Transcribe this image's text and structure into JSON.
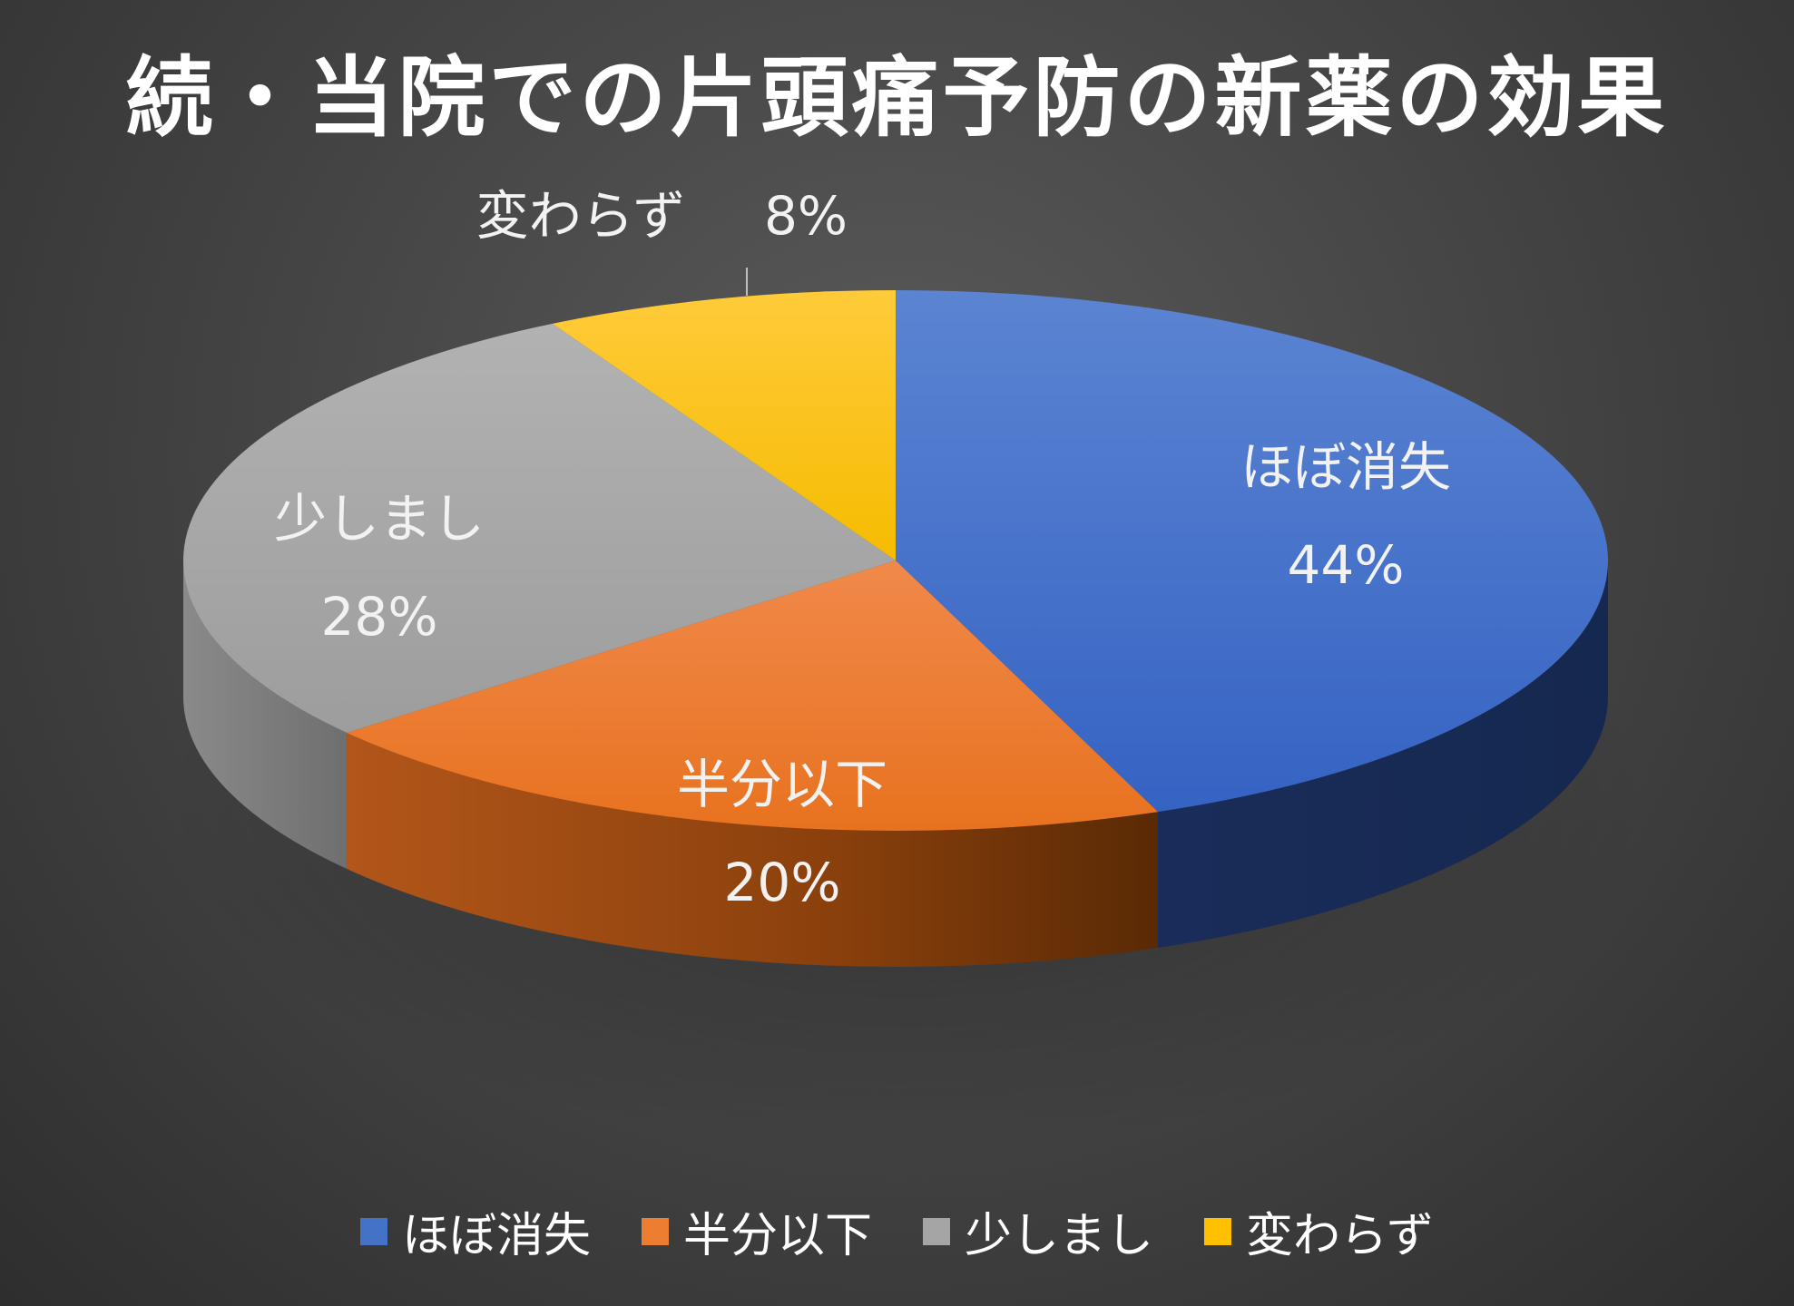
{
  "chart_data": {
    "type": "pie",
    "title": "続・当院での片頭痛予防の新薬の効果",
    "categories": [
      "ほぼ消失",
      "半分以下",
      "少しまし",
      "変わらず"
    ],
    "values": [
      44,
      20,
      28,
      8
    ],
    "data_labels": [
      {
        "name": "ほぼ消失",
        "pct": "44%"
      },
      {
        "name": "半分以下",
        "pct": "20%"
      },
      {
        "name": "少しまし",
        "pct": "28%"
      },
      {
        "name": "変わらず",
        "pct": "8%"
      }
    ],
    "colors": [
      "#4472c4",
      "#ed7d31",
      "#a5a5a5",
      "#ffc000"
    ],
    "legend_position": "bottom",
    "style": "3d-pie"
  }
}
